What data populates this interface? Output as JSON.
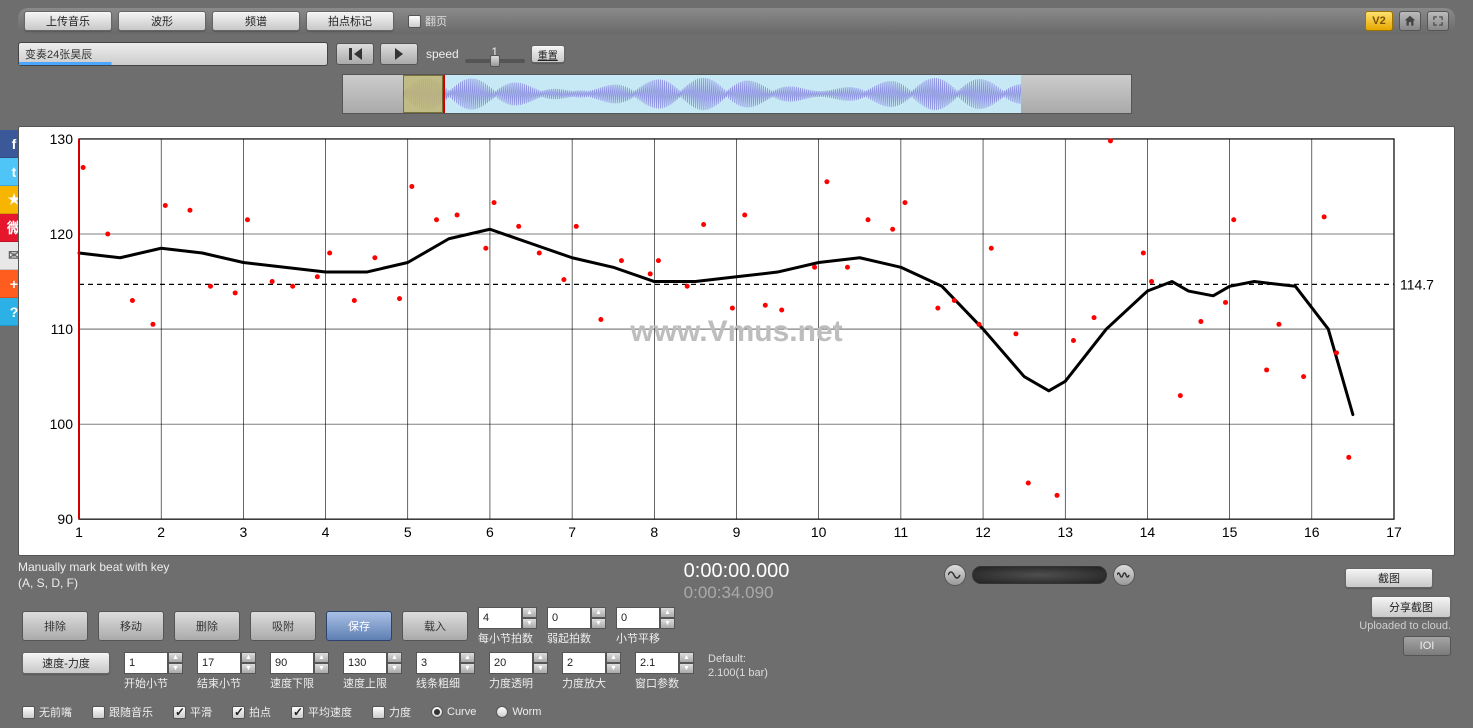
{
  "toolbar": {
    "upload": "上传音乐",
    "waveform": "波形",
    "spectrum": "频谱",
    "beat_marks": "拍点标记",
    "flip": "翻页",
    "v2": "V2"
  },
  "title_bar": {
    "title": "变奏24张昊辰"
  },
  "transport": {
    "speed_label": "speed",
    "speed_value": "1",
    "reset": "重置"
  },
  "chart": {
    "type": "scatter+line",
    "watermark": "www.Vmus.net",
    "xlim": [
      1,
      17
    ],
    "xtick_step": 1,
    "ylim": [
      90,
      130
    ],
    "ytick_step": 10,
    "refline_y": 114.7,
    "refline_label": "114.7",
    "curve_color": "#000000",
    "curve_width": 3,
    "point_color": "#ff0000",
    "point_radius": 2.5,
    "grid_color": "#000000",
    "grid_width": 0.6,
    "refline_dash": "5,4",
    "axis_fontsize": 14,
    "playhead_x": 1.0,
    "playhead_color": "#d40000",
    "points": [
      [
        1.05,
        127
      ],
      [
        1.35,
        120
      ],
      [
        1.65,
        113
      ],
      [
        1.9,
        110.5
      ],
      [
        2.05,
        123
      ],
      [
        2.35,
        122.5
      ],
      [
        2.6,
        114.5
      ],
      [
        2.9,
        113.8
      ],
      [
        3.05,
        121.5
      ],
      [
        3.35,
        115
      ],
      [
        3.6,
        114.5
      ],
      [
        3.9,
        115.5
      ],
      [
        4.05,
        118
      ],
      [
        4.35,
        113
      ],
      [
        4.6,
        117.5
      ],
      [
        4.9,
        113.2
      ],
      [
        5.05,
        125
      ],
      [
        5.35,
        121.5
      ],
      [
        5.6,
        122
      ],
      [
        5.95,
        118.5
      ],
      [
        6.05,
        123.3
      ],
      [
        6.35,
        120.8
      ],
      [
        6.6,
        118
      ],
      [
        6.9,
        115.2
      ],
      [
        7.05,
        120.8
      ],
      [
        7.35,
        111
      ],
      [
        7.6,
        117.2
      ],
      [
        7.95,
        115.8
      ],
      [
        8.05,
        117.2
      ],
      [
        8.4,
        114.5
      ],
      [
        8.6,
        121
      ],
      [
        8.95,
        112.2
      ],
      [
        9.1,
        122
      ],
      [
        9.35,
        112.5
      ],
      [
        9.55,
        112
      ],
      [
        9.95,
        116.5
      ],
      [
        10.1,
        125.5
      ],
      [
        10.35,
        116.5
      ],
      [
        10.6,
        121.5
      ],
      [
        10.9,
        120.5
      ],
      [
        11.05,
        123.3
      ],
      [
        11.45,
        112.2
      ],
      [
        11.65,
        113
      ],
      [
        11.95,
        110.5
      ],
      [
        12.1,
        118.5
      ],
      [
        12.4,
        109.5
      ],
      [
        12.55,
        93.8
      ],
      [
        12.9,
        92.5
      ],
      [
        13.1,
        108.8
      ],
      [
        13.35,
        111.2
      ],
      [
        13.55,
        129.8
      ],
      [
        13.95,
        118
      ],
      [
        14.05,
        115
      ],
      [
        14.4,
        103
      ],
      [
        14.65,
        110.8
      ],
      [
        14.95,
        112.8
      ],
      [
        15.05,
        121.5
      ],
      [
        15.45,
        105.7
      ],
      [
        15.6,
        110.5
      ],
      [
        15.9,
        105
      ],
      [
        16.15,
        121.8
      ],
      [
        16.3,
        107.5
      ],
      [
        16.45,
        96.5
      ]
    ],
    "curve": [
      [
        1.0,
        118
      ],
      [
        1.5,
        117.5
      ],
      [
        2.0,
        118.5
      ],
      [
        2.5,
        118
      ],
      [
        3.0,
        117
      ],
      [
        3.5,
        116.5
      ],
      [
        4.0,
        116
      ],
      [
        4.5,
        116
      ],
      [
        5.0,
        117
      ],
      [
        5.5,
        119.5
      ],
      [
        6.0,
        120.5
      ],
      [
        6.5,
        119
      ],
      [
        7.0,
        117.5
      ],
      [
        7.5,
        116.5
      ],
      [
        8.0,
        115
      ],
      [
        8.5,
        115
      ],
      [
        9.0,
        115.5
      ],
      [
        9.5,
        116
      ],
      [
        10.0,
        117
      ],
      [
        10.5,
        117.5
      ],
      [
        11.0,
        116.5
      ],
      [
        11.5,
        114.5
      ],
      [
        12.0,
        110
      ],
      [
        12.5,
        105
      ],
      [
        12.8,
        103.5
      ],
      [
        13.0,
        104.5
      ],
      [
        13.5,
        110
      ],
      [
        14.0,
        114
      ],
      [
        14.3,
        115
      ],
      [
        14.5,
        114
      ],
      [
        14.8,
        113.5
      ],
      [
        15.0,
        114.5
      ],
      [
        15.3,
        115
      ],
      [
        15.8,
        114.5
      ],
      [
        16.2,
        110
      ],
      [
        16.5,
        101
      ]
    ]
  },
  "social": [
    {
      "id": "facebook",
      "glyph": "f",
      "bg": "#3b5998"
    },
    {
      "id": "twitter",
      "glyph": "t",
      "bg": "#4fc4f6"
    },
    {
      "id": "qzone",
      "glyph": "★",
      "bg": "#f8b500"
    },
    {
      "id": "weibo",
      "glyph": "微",
      "bg": "#e6162d"
    },
    {
      "id": "mail",
      "glyph": "✉",
      "bg": "#e8e8e8"
    },
    {
      "id": "addthis",
      "glyph": "+",
      "bg": "#ff5c1f"
    },
    {
      "id": "help",
      "glyph": "?",
      "bg": "#2bb1e6"
    }
  ],
  "status": {
    "hint1": "Manually mark beat with key",
    "hint2": "(A, S, D, F)",
    "tc_main": "0:00:00.000",
    "tc_sub": "0:00:34.090",
    "screenshot": "截图"
  },
  "edit": {
    "delete": "排除",
    "move": "移动",
    "delete2": "删除",
    "snap": "吸附",
    "save": "保存",
    "load": "载入",
    "beats_per_bar": {
      "value": "4",
      "label": "每小节拍数"
    },
    "pickup_beats": {
      "value": "0",
      "label": "弱起拍数"
    },
    "bar_shift": {
      "value": "0",
      "label": "小节平移"
    }
  },
  "share": {
    "btn": "分享截图",
    "uploaded": "Uploaded to cloud.",
    "ioi": "IOI"
  },
  "params": {
    "speed_dynamics_btn": "速度-力度",
    "start_bar": {
      "value": "1",
      "label": "开始小节"
    },
    "end_bar": {
      "value": "17",
      "label": "结束小节"
    },
    "speed_lo": {
      "value": "90",
      "label": "速度下限"
    },
    "speed_hi": {
      "value": "130",
      "label": "速度上限"
    },
    "line_weight": {
      "value": "3",
      "label": "线条粗细"
    },
    "dyn_opacity": {
      "value": "20",
      "label": "力度透明"
    },
    "dyn_scale": {
      "value": "2",
      "label": "力度放大"
    },
    "window": {
      "value": "2.1",
      "label": "窗口参数"
    },
    "default_label": "Default:",
    "default_value": "2.100(1 bar)"
  },
  "checks": {
    "no_pickup": "无前嘴",
    "follow_music": "跟随音乐",
    "smooth": "平滑",
    "beats": "拍点",
    "avg_speed": "平均速度",
    "dynamics": "力度",
    "curve": "Curve",
    "worm": "Worm"
  }
}
